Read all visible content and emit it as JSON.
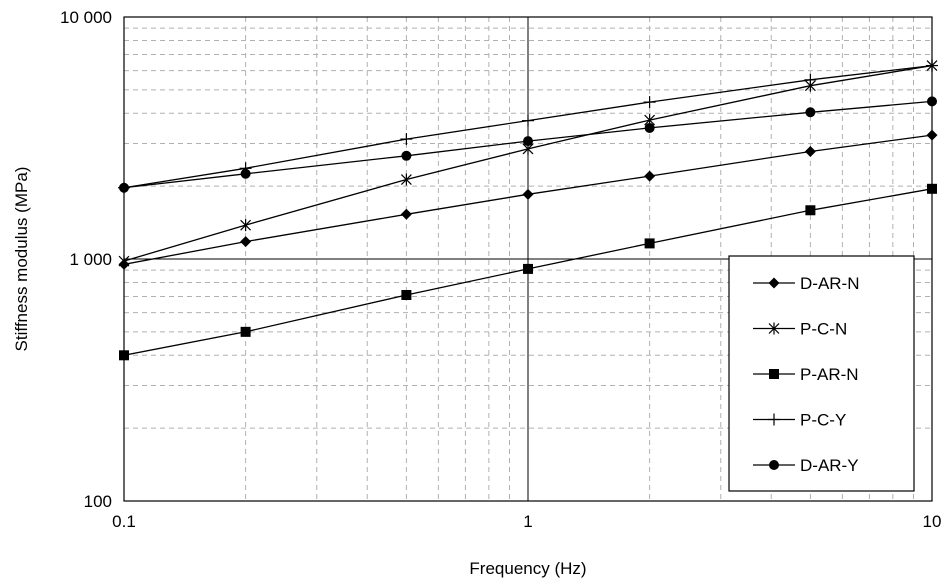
{
  "chart_data": {
    "type": "line",
    "xlabel": "Frequency (Hz)",
    "ylabel": "Stiffness modulus (MPa)",
    "x_scale": "log",
    "y_scale": "log",
    "xlim": [
      0.1,
      10
    ],
    "ylim": [
      100,
      10000
    ],
    "x_ticks": [
      {
        "value": 0.1,
        "label": "0.1"
      },
      {
        "value": 1,
        "label": "1"
      },
      {
        "value": 10,
        "label": "10"
      }
    ],
    "y_ticks": [
      {
        "value": 100,
        "label": "100"
      },
      {
        "value": 1000,
        "label": "1 000"
      },
      {
        "value": 10000,
        "label": "10 000"
      }
    ],
    "grid": true,
    "legend_position": "bottom-right",
    "x": [
      0.1,
      0.2,
      0.5,
      1,
      2,
      5,
      10
    ],
    "series": [
      {
        "name": "D-AR-N",
        "marker": "diamond",
        "values": [
          950,
          1180,
          1530,
          1850,
          2200,
          2780,
          3250
        ]
      },
      {
        "name": "P-C-N",
        "marker": "asterisk",
        "values": [
          980,
          1380,
          2130,
          2850,
          3750,
          5200,
          6300
        ]
      },
      {
        "name": "P-AR-N",
        "marker": "square",
        "values": [
          400,
          500,
          710,
          910,
          1160,
          1590,
          1950
        ]
      },
      {
        "name": "P-C-Y",
        "marker": "plus",
        "values": [
          1970,
          2370,
          3130,
          3730,
          4450,
          5500,
          6300
        ]
      },
      {
        "name": "D-AR-Y",
        "marker": "circle",
        "values": [
          1970,
          2250,
          2670,
          3070,
          3480,
          4040,
          4480
        ]
      }
    ],
    "colors": {
      "line": "#000000",
      "grid_major": "#000000",
      "grid_minor": "#b0b0b0",
      "background": "#ffffff"
    }
  }
}
